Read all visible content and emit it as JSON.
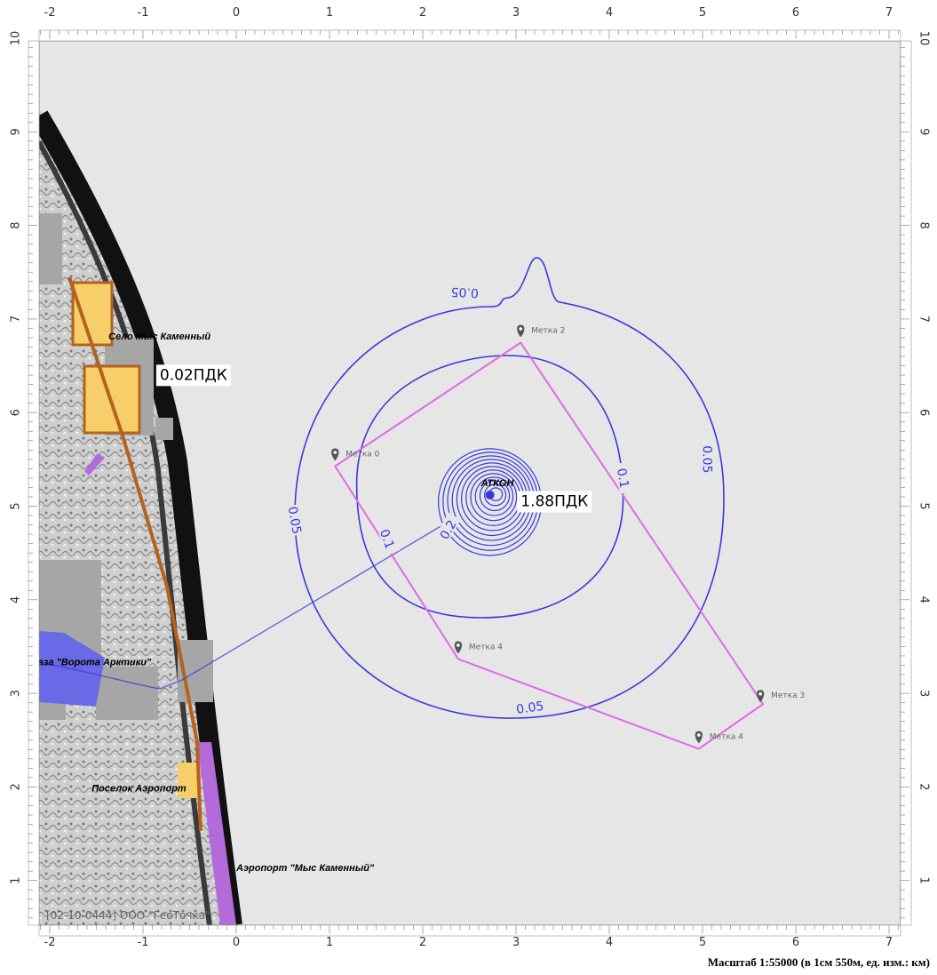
{
  "map": {
    "x_ticks": [
      "-2",
      "-1",
      "0",
      "1",
      "2",
      "3",
      "4",
      "5",
      "6",
      "7"
    ],
    "y_ticks": [
      "10",
      "9",
      "8",
      "7",
      "6",
      "5",
      "4",
      "3",
      "2",
      "1"
    ],
    "scale_text": "Масштаб 1:55000 (в 1см 550м, ед. изм.: км)",
    "org_text": "[02-10-0444] ООО \"ГеоТочка\"",
    "source": {
      "label": "АТКОН",
      "x": 2.72,
      "y": 5.12
    },
    "pdk_labels": [
      {
        "text": "0.02ПДК",
        "x": -0.82,
        "y": 6.35
      },
      {
        "text": "1.88ПДК",
        "x": 3.05,
        "y": 5.0
      }
    ],
    "contour_labels": [
      {
        "text": "0.05",
        "x": 2.45,
        "y": 7.28,
        "rot": 183
      },
      {
        "text": "0.05",
        "x": 5.05,
        "y": 5.5,
        "rot": 90
      },
      {
        "text": "0.05",
        "x": 0.63,
        "y": 4.85,
        "rot": 80
      },
      {
        "text": "0.05",
        "x": 3.15,
        "y": 2.85,
        "rot": -8
      },
      {
        "text": "0.1",
        "x": 4.15,
        "y": 5.3,
        "rot": 80
      },
      {
        "text": "0.1",
        "x": 1.62,
        "y": 4.65,
        "rot": 70
      },
      {
        "text": "0.2",
        "x": 2.27,
        "y": 4.75,
        "rot": -60
      }
    ],
    "markers": [
      {
        "label": "Метка 2",
        "x": 3.05,
        "y": 6.88
      },
      {
        "label": "Метка 0",
        "x": 1.06,
        "y": 5.56
      },
      {
        "label": "Метка 4",
        "x": 2.38,
        "y": 3.5
      },
      {
        "label": "Метка 3",
        "x": 5.62,
        "y": 2.98
      },
      {
        "label": "Метка 4",
        "x": 4.96,
        "y": 2.54
      }
    ],
    "places": [
      {
        "label": "Село Мыс Каменный",
        "x": -1.37,
        "y": 6.78
      },
      {
        "label": "База \"Ворота Арктики\"",
        "x": -2.2,
        "y": 3.3
      },
      {
        "label": "Поселок Аэропорт",
        "x": -1.55,
        "y": 1.95
      },
      {
        "label": "Аэропорт \"Мыс Каменный\"",
        "x": 0.0,
        "y": 1.1
      }
    ],
    "colors": {
      "background": "#e6e6e6",
      "contour": "#3a3adc",
      "polygon": "#e06ae6",
      "road": "#b4621e",
      "settlement": "#f6cf6a",
      "airport": "#b46ad8",
      "base": "#6a6ae6",
      "building": "#a6a6a6"
    }
  }
}
